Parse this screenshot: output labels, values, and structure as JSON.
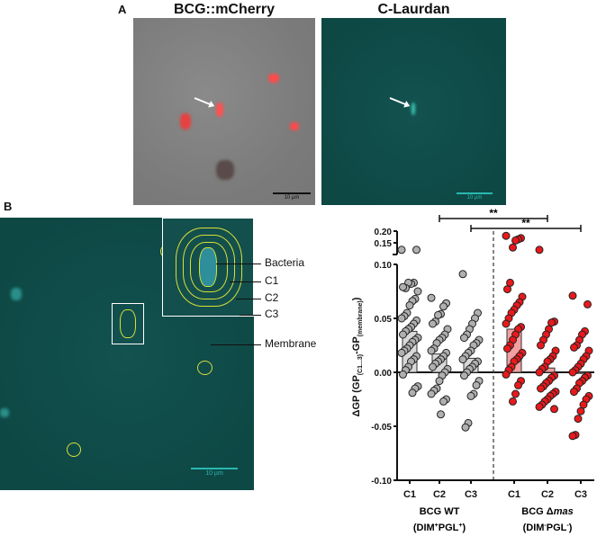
{
  "panel_a": {
    "label": "A",
    "image1_title": "BCG::mCherry",
    "image2_title": "C-Laurdan",
    "scale_bar_1": "10 µm",
    "scale_bar_2": "10 µm"
  },
  "panel_b": {
    "label": "B",
    "scale_bar": "10 µm",
    "callouts": [
      "Bacteria",
      "C1",
      "C2",
      "C3",
      "Membrane"
    ]
  },
  "colors": {
    "wt": "#b0b0b0",
    "wt_bar": "#d9d9d9",
    "mas": "#e8191c",
    "mas_bar": "#f4a0a0",
    "teal": "#0f4d4a"
  },
  "chart_data": {
    "type": "scatter",
    "ylabel_main": "ΔGP (GP",
    "ylabel_sub1": "(C1...3)",
    "ylabel_mid": "-GP",
    "ylabel_sub2": "(membrane)",
    "ylabel_end": ")",
    "ylim": [
      -0.1,
      0.2
    ],
    "axis_break": [
      0.1,
      0.13
    ],
    "yticks": [
      "-0.10",
      "-0.05",
      "0.00",
      "0.05",
      "0.10",
      "0.15",
      "0.20"
    ],
    "ytick_values": [
      -0.1,
      -0.05,
      0.0,
      0.05,
      0.1,
      0.15,
      0.2
    ],
    "categories": [
      "C1",
      "C2",
      "C3",
      "C1",
      "C2",
      "C3"
    ],
    "groups": [
      {
        "name": "BCG WT",
        "sub_pre": "(DIM",
        "sup1": "+",
        "sub_mid": "PGL",
        "sup2": "+",
        "sub_post": ")"
      },
      {
        "name": "BCG Δ",
        "name_italic": "mas",
        "sub_pre": "(DIM",
        "sup1": "-",
        "sub_mid": "PGL",
        "sup2": "-",
        "sub_post": ")"
      }
    ],
    "significance": [
      {
        "from": 1,
        "to": 4,
        "label": "**"
      },
      {
        "from": 2,
        "to": 5,
        "label": "**"
      }
    ],
    "series": [
      {
        "name": "BCG WT C1",
        "group": 0,
        "mean": 0.038,
        "values": [
          0.12,
          0.12,
          0.083,
          0.082,
          0.083,
          0.078,
          0.079,
          0.075,
          0.068,
          0.066,
          0.062,
          0.055,
          0.052,
          0.05,
          0.048,
          0.045,
          0.042,
          0.04,
          0.038,
          0.035,
          0.032,
          0.03,
          0.028,
          0.025,
          0.022,
          0.02,
          0.018,
          0.015,
          0.012,
          0.01,
          0.005,
          0.002,
          -0.002,
          -0.013,
          -0.015,
          -0.019
        ]
      },
      {
        "name": "BCG WT C2",
        "group": 0,
        "mean": 0.017,
        "values": [
          0.069,
          0.064,
          0.061,
          0.054,
          0.053,
          0.047,
          0.045,
          0.04,
          0.035,
          0.032,
          0.03,
          0.027,
          0.022,
          0.02,
          0.018,
          0.015,
          0.012,
          0.01,
          0.008,
          0.005,
          0.003,
          0.0,
          -0.003,
          -0.008,
          -0.015,
          -0.017,
          -0.02,
          -0.025,
          -0.027,
          -0.039
        ]
      },
      {
        "name": "BCG WT C3",
        "group": 0,
        "mean": 0.013,
        "values": [
          0.091,
          0.055,
          0.05,
          0.045,
          0.04,
          0.035,
          0.032,
          0.03,
          0.027,
          0.025,
          0.02,
          0.018,
          0.015,
          0.012,
          0.01,
          0.008,
          0.005,
          0.003,
          0.0,
          -0.003,
          -0.008,
          -0.012,
          -0.02,
          -0.022,
          -0.047,
          -0.051
        ]
      },
      {
        "name": "BCG Δmas C1",
        "group": 1,
        "mean": 0.04,
        "values": [
          0.18,
          0.17,
          0.165,
          0.16,
          0.13,
          0.083,
          0.077,
          0.07,
          0.065,
          0.062,
          0.058,
          0.055,
          0.05,
          0.045,
          0.042,
          0.04,
          0.035,
          0.03,
          0.025,
          0.022,
          0.018,
          0.015,
          0.012,
          0.01,
          0.005,
          0.002,
          -0.002,
          -0.008,
          -0.012,
          -0.02,
          -0.027
        ]
      },
      {
        "name": "BCG Δmas C2",
        "group": 1,
        "mean": 0.004,
        "values": [
          0.12,
          0.047,
          0.046,
          0.04,
          0.035,
          0.03,
          0.025,
          0.02,
          0.015,
          0.012,
          0.01,
          0.005,
          0.003,
          0.0,
          -0.003,
          -0.005,
          -0.008,
          -0.01,
          -0.013,
          -0.015,
          -0.018,
          -0.02,
          -0.022,
          -0.025,
          -0.027,
          -0.03,
          -0.032,
          -0.034
        ]
      },
      {
        "name": "BCG Δmas C3",
        "group": 1,
        "mean": -0.001,
        "values": [
          0.071,
          0.063,
          0.038,
          0.035,
          0.03,
          0.025,
          0.023,
          0.02,
          0.015,
          0.012,
          0.008,
          0.005,
          0.002,
          0.0,
          -0.003,
          -0.005,
          -0.008,
          -0.01,
          -0.015,
          -0.018,
          -0.022,
          -0.025,
          -0.03,
          -0.036,
          -0.043,
          -0.058,
          -0.059
        ]
      }
    ]
  }
}
